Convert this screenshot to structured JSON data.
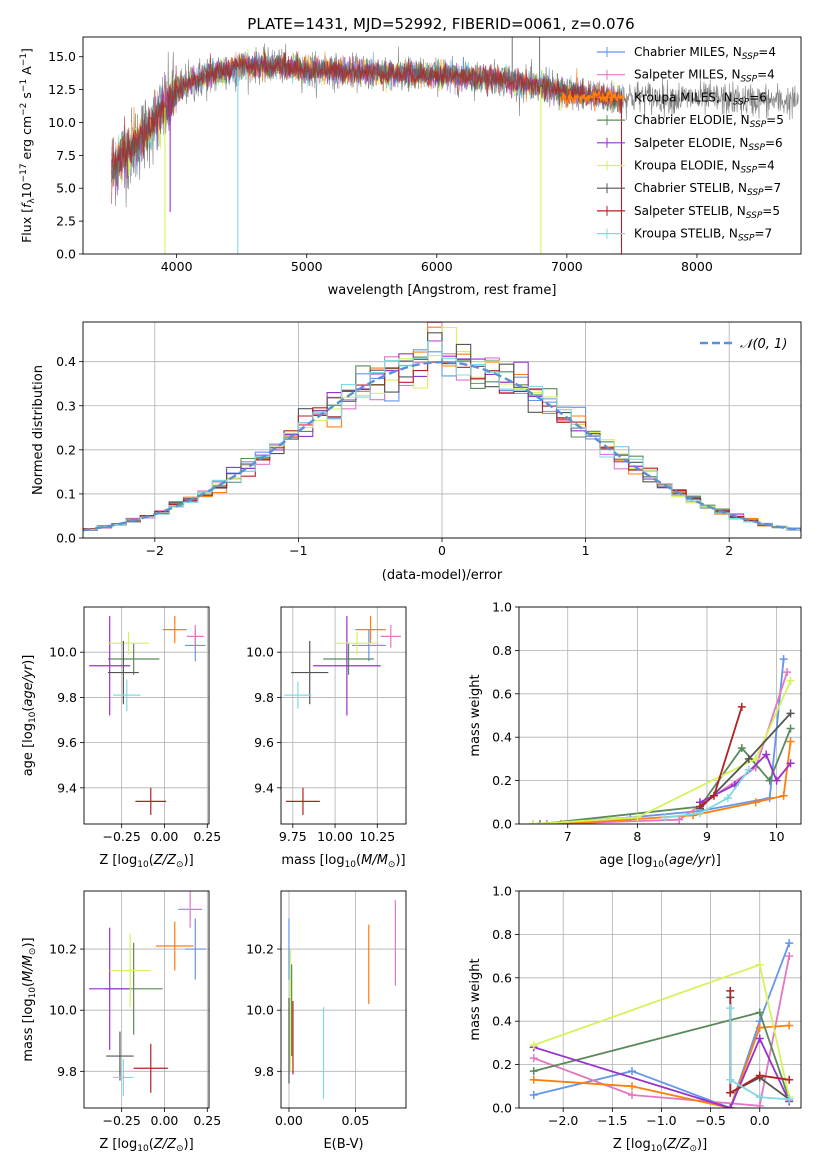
{
  "figure_title": "PLATE=1431, MJD=52992, FIBERID=0061, z=0.076",
  "colors": {
    "chabrier_miles": "#6495ed",
    "salpeter_miles": "#e377c2",
    "kroupa_miles": "#ff7f0e",
    "chabrier_elodie": "#5a8a5a",
    "salpeter_elodie": "#9932cc",
    "kroupa_elodie": "#d4f35a",
    "chabrier_stelib": "#555555",
    "salpeter_stelib": "#b22222",
    "kroupa_stelib": "#7fdbe0",
    "data_gray": "#808080",
    "gaussian": "#5b8fd6"
  },
  "chart_data": [
    {
      "id": "spectrum",
      "type": "line",
      "xlabel": "wavelength [Angstrom, rest frame]",
      "ylabel": "Flux [f$_\\lambda$10$^{-17}$ erg cm$^{-2}$ s$^{-1}$ A$^{-1}$]",
      "ylabel_parts": [
        "Flux [f",
        "λ",
        "10",
        "−17",
        " erg cm",
        "−2",
        " s",
        "−1",
        " A",
        "−1",
        "]"
      ],
      "xlim": [
        3280,
        8800
      ],
      "ylim": [
        0,
        16.5
      ],
      "xticks": [
        4000,
        5000,
        6000,
        7000,
        8000
      ],
      "yticks": [
        0.0,
        2.5,
        5.0,
        7.5,
        10.0,
        12.5,
        15.0
      ],
      "ytick_labels": [
        "0.0",
        "2.5",
        "5.0",
        "7.5",
        "10.0",
        "12.5",
        "15.0"
      ],
      "legend_position": "right",
      "legend": [
        {
          "main": "Chabrier MILES, N",
          "sub": "SSP",
          "tail": "=4",
          "color_key": "chabrier_miles"
        },
        {
          "main": "Salpeter MILES, N",
          "sub": "SSP",
          "tail": "=4",
          "color_key": "salpeter_miles"
        },
        {
          "main": "Kroupa MILES, N",
          "sub": "SSP",
          "tail": "=6",
          "color_key": "kroupa_miles"
        },
        {
          "main": "Chabrier ELODIE, N",
          "sub": "SSP",
          "tail": "=5",
          "color_key": "chabrier_elodie"
        },
        {
          "main": "Salpeter ELODIE, N",
          "sub": "SSP",
          "tail": "=6",
          "color_key": "salpeter_elodie"
        },
        {
          "main": "Kroupa ELODIE, N",
          "sub": "SSP",
          "tail": "=4",
          "color_key": "kroupa_elodie"
        },
        {
          "main": "Chabrier STELIB, N",
          "sub": "SSP",
          "tail": "=7",
          "color_key": "chabrier_stelib"
        },
        {
          "main": "Salpeter STELIB, N",
          "sub": "SSP",
          "tail": "=5",
          "color_key": "salpeter_stelib"
        },
        {
          "main": "Kroupa STELIB, N",
          "sub": "SSP",
          "tail": "=7",
          "color_key": "kroupa_stelib"
        }
      ],
      "continuum": {
        "x": [
          3500,
          3700,
          3900,
          4000,
          4100,
          4300,
          4500,
          4800,
          5000,
          5500,
          6000,
          6500,
          7000,
          7400
        ],
        "y": [
          6.5,
          8.5,
          11.0,
          12.5,
          13.0,
          13.8,
          14.3,
          14.3,
          14.0,
          13.8,
          13.6,
          13.3,
          12.3,
          11.8
        ]
      },
      "data_extends_to": 8780,
      "spikes": [
        {
          "x": 3910,
          "y": 0.0,
          "color_key": "kroupa_elodie"
        },
        {
          "x": 4470,
          "y": 0.0,
          "color_key": "kroupa_stelib"
        },
        {
          "x": 6800,
          "y": 0.0,
          "color_key": "kroupa_elodie"
        },
        {
          "x": 7420,
          "y": 0.0,
          "color_key": "salpeter_stelib"
        },
        {
          "x": 3950,
          "y": 3.2,
          "color_key": "salpeter_elodie"
        },
        {
          "x": 6580,
          "y": 16.5,
          "color_key": "data_gray"
        },
        {
          "x": 6790,
          "y": 16.5,
          "color_key": "data_gray"
        }
      ]
    },
    {
      "id": "residuals",
      "type": "histogram",
      "xlabel": "(data-model)/error",
      "ylabel": "Normed distribution",
      "xlim": [
        -2.5,
        2.5
      ],
      "ylim": [
        0,
        0.49
      ],
      "xticks": [
        -2,
        -1,
        0,
        1,
        2
      ],
      "xtick_labels": [
        "−2",
        "−1",
        "0",
        "1",
        "2"
      ],
      "yticks": [
        0.0,
        0.1,
        0.2,
        0.3,
        0.4
      ],
      "ytick_labels": [
        "0.0",
        "0.1",
        "0.2",
        "0.3",
        "0.4"
      ],
      "legend": "𝒩(0, 1)",
      "legend_position": "top-right",
      "bin_width": 0.1,
      "grid": true
    },
    {
      "id": "age_vs_Z",
      "type": "errorbar",
      "xlabel_main": "Z [log",
      "xlabel_sub": "10",
      "xlabel_tail": "(Z/Z",
      "xlabel_end": ")]",
      "ylabel_main": "age  [log",
      "ylabel_sub": "10",
      "ylabel_tail": "(age/yr)]",
      "xlim": [
        -0.47,
        0.26
      ],
      "ylim": [
        9.24,
        10.2
      ],
      "xticks": [
        -0.25,
        0.0,
        0.25
      ],
      "xtick_labels": [
        "−0.25",
        "0.00",
        "0.25"
      ],
      "yticks": [
        9.4,
        9.6,
        9.8,
        10.0
      ],
      "ytick_labels": [
        "9.4",
        "9.6",
        "9.8",
        "10.0"
      ],
      "points": [
        {
          "color_key": "chabrier_miles",
          "x": 0.18,
          "xerr": 0.06,
          "y": 10.03,
          "yerr": 0.07
        },
        {
          "color_key": "salpeter_miles",
          "x": 0.18,
          "xerr": 0.05,
          "y": 10.07,
          "yerr": 0.05
        },
        {
          "color_key": "kroupa_miles",
          "x": 0.06,
          "xerr": 0.07,
          "y": 10.1,
          "yerr": 0.06
        },
        {
          "color_key": "chabrier_elodie",
          "x": -0.18,
          "xerr": 0.15,
          "y": 9.97,
          "yerr": 0.07
        },
        {
          "color_key": "salpeter_elodie",
          "x": -0.32,
          "xerr": 0.12,
          "y": 9.94,
          "yerr": 0.22
        },
        {
          "color_key": "kroupa_elodie",
          "x": -0.21,
          "xerr": 0.12,
          "y": 10.04,
          "yerr": 0.05
        },
        {
          "color_key": "chabrier_stelib",
          "x": -0.24,
          "xerr": 0.09,
          "y": 9.91,
          "yerr": 0.14
        },
        {
          "color_key": "salpeter_stelib",
          "x": -0.08,
          "xerr": 0.09,
          "y": 9.34,
          "yerr": 0.06
        },
        {
          "color_key": "kroupa_stelib",
          "x": -0.22,
          "xerr": 0.08,
          "y": 9.81,
          "yerr": 0.07
        }
      ]
    },
    {
      "id": "age_vs_mass",
      "type": "errorbar",
      "xlabel_main": "mass [log",
      "xlabel_sub": "10",
      "xlabel_tail": "(M/M",
      "xlabel_end": ")]",
      "xlim": [
        9.68,
        10.42
      ],
      "ylim": [
        9.24,
        10.2
      ],
      "xticks": [
        9.75,
        10.0,
        10.25
      ],
      "xtick_labels": [
        "9.75",
        "10.00",
        "10.25"
      ],
      "yticks": [
        9.4,
        9.6,
        9.8,
        10.0
      ],
      "ytick_labels": [
        "9.4",
        "9.6",
        "9.8",
        "10.0"
      ],
      "points": [
        {
          "color_key": "chabrier_miles",
          "x": 10.2,
          "xerr": 0.1,
          "y": 10.03,
          "yerr": 0.07
        },
        {
          "color_key": "salpeter_miles",
          "x": 10.33,
          "xerr": 0.06,
          "y": 10.07,
          "yerr": 0.05
        },
        {
          "color_key": "kroupa_miles",
          "x": 10.21,
          "xerr": 0.09,
          "y": 10.1,
          "yerr": 0.06
        },
        {
          "color_key": "chabrier_elodie",
          "x": 10.08,
          "xerr": 0.15,
          "y": 9.97,
          "yerr": 0.07
        },
        {
          "color_key": "salpeter_elodie",
          "x": 10.07,
          "xerr": 0.2,
          "y": 9.94,
          "yerr": 0.22
        },
        {
          "color_key": "kroupa_elodie",
          "x": 10.13,
          "xerr": 0.13,
          "y": 10.04,
          "yerr": 0.05
        },
        {
          "color_key": "chabrier_stelib",
          "x": 9.85,
          "xerr": 0.11,
          "y": 9.91,
          "yerr": 0.14
        },
        {
          "color_key": "salpeter_stelib",
          "x": 9.81,
          "xerr": 0.1,
          "y": 9.34,
          "yerr": 0.06
        },
        {
          "color_key": "kroupa_stelib",
          "x": 9.78,
          "xerr": 0.08,
          "y": 9.81,
          "yerr": 0.06
        }
      ]
    },
    {
      "id": "mass_weight_vs_age",
      "type": "line",
      "xlabel_main": "age  [log",
      "xlabel_sub": "10",
      "xlabel_tail": "(age/yr)]",
      "ylabel": "mass weight",
      "xlim": [
        6.3,
        10.35
      ],
      "ylim": [
        0,
        1.0
      ],
      "xticks": [
        7,
        8,
        9,
        10
      ],
      "xtick_labels": [
        "7",
        "8",
        "9",
        "10"
      ],
      "yticks": [
        0.0,
        0.2,
        0.4,
        0.6,
        0.8,
        1.0
      ],
      "ytick_labels": [
        "0.0",
        "0.2",
        "0.4",
        "0.6",
        "0.8",
        "1.0"
      ],
      "series": [
        {
          "color_key": "chabrier_miles",
          "x": [
            6.5,
            7.9,
            8.9,
            9.9,
            10.1
          ],
          "y": [
            0.0,
            0.03,
            0.06,
            0.12,
            0.76
          ]
        },
        {
          "color_key": "salpeter_miles",
          "x": [
            6.7,
            8.6,
            9.7,
            10.15
          ],
          "y": [
            0.0,
            0.02,
            0.26,
            0.7
          ]
        },
        {
          "color_key": "kroupa_miles",
          "x": [
            6.9,
            8.8,
            9.7,
            10.1,
            10.2
          ],
          "y": [
            0.0,
            0.04,
            0.1,
            0.13,
            0.38
          ]
        },
        {
          "color_key": "chabrier_elodie",
          "x": [
            6.6,
            8.9,
            9.5,
            9.9,
            10.2
          ],
          "y": [
            0.0,
            0.08,
            0.35,
            0.2,
            0.44
          ]
        },
        {
          "color_key": "salpeter_elodie",
          "x": [
            8.9,
            9.4,
            9.85,
            10.0,
            10.2
          ],
          "y": [
            0.1,
            0.18,
            0.32,
            0.2,
            0.28
          ]
        },
        {
          "color_key": "kroupa_elodie",
          "x": [
            6.5,
            8.0,
            9.7,
            10.2
          ],
          "y": [
            0.0,
            0.03,
            0.3,
            0.66
          ]
        },
        {
          "color_key": "chabrier_stelib",
          "x": [
            8.9,
            9.6,
            10.2
          ],
          "y": [
            0.07,
            0.3,
            0.51
          ]
        },
        {
          "color_key": "salpeter_stelib",
          "x": [
            8.9,
            9.1,
            9.5
          ],
          "y": [
            0.08,
            0.13,
            0.54
          ]
        },
        {
          "color_key": "kroupa_stelib",
          "x": [
            8.4,
            8.9,
            9.3,
            9.6
          ],
          "y": [
            0.03,
            0.05,
            0.12,
            0.25
          ]
        }
      ]
    },
    {
      "id": "mass_vs_Z",
      "type": "errorbar",
      "xlabel_main": "Z [log",
      "xlabel_sub": "10",
      "xlabel_tail": "(Z/Z",
      "xlabel_end": ")]",
      "ylabel_main": "mass [log",
      "ylabel_sub": "10",
      "ylabel_tail": "(M/M",
      "ylabel_end": ")]",
      "xlim": [
        -0.47,
        0.26
      ],
      "ylim": [
        9.68,
        10.39
      ],
      "xticks": [
        -0.25,
        0.0,
        0.25
      ],
      "xtick_labels": [
        "−0.25",
        "0.00",
        "0.25"
      ],
      "yticks": [
        9.8,
        10.0,
        10.2
      ],
      "ytick_labels": [
        "9.8",
        "10.0",
        "10.2"
      ],
      "points": [
        {
          "color_key": "chabrier_miles",
          "x": 0.18,
          "xerr": 0.06,
          "y": 10.2,
          "yerr": 0.1
        },
        {
          "color_key": "salpeter_miles",
          "x": 0.15,
          "xerr": 0.07,
          "y": 10.33,
          "yerr": 0.06
        },
        {
          "color_key": "kroupa_miles",
          "x": 0.06,
          "xerr": 0.11,
          "y": 10.21,
          "yerr": 0.08
        },
        {
          "color_key": "chabrier_elodie",
          "x": -0.18,
          "xerr": 0.17,
          "y": 10.07,
          "yerr": 0.15
        },
        {
          "color_key": "salpeter_elodie",
          "x": -0.32,
          "xerr": 0.12,
          "y": 10.07,
          "yerr": 0.2
        },
        {
          "color_key": "kroupa_elodie",
          "x": -0.2,
          "xerr": 0.12,
          "y": 10.13,
          "yerr": 0.12
        },
        {
          "color_key": "chabrier_stelib",
          "x": -0.26,
          "xerr": 0.08,
          "y": 9.85,
          "yerr": 0.08
        },
        {
          "color_key": "salpeter_stelib",
          "x": -0.08,
          "xerr": 0.1,
          "y": 9.81,
          "yerr": 0.08
        },
        {
          "color_key": "kroupa_stelib",
          "x": -0.24,
          "xerr": 0.06,
          "y": 9.78,
          "yerr": 0.06
        }
      ]
    },
    {
      "id": "mass_vs_ebv",
      "type": "errorbar",
      "xlabel": "E(B-V)",
      "xlim": [
        -0.006,
        0.088
      ],
      "ylim": [
        9.68,
        10.39
      ],
      "xticks": [
        0.0,
        0.05
      ],
      "xtick_labels": [
        "0.00",
        "0.05"
      ],
      "yticks": [
        9.8,
        10.0,
        10.2
      ],
      "ytick_labels": [
        "9.8",
        "10.0",
        "10.2"
      ],
      "points": [
        {
          "color_key": "chabrier_miles",
          "x": 0.0,
          "xerr": 0,
          "y": 10.2,
          "yerr": 0.1
        },
        {
          "color_key": "salpeter_miles",
          "x": 0.08,
          "xerr": 0,
          "y": 10.22,
          "yerr": 0.14
        },
        {
          "color_key": "kroupa_miles",
          "x": 0.06,
          "xerr": 0,
          "y": 10.15,
          "yerr": 0.13
        },
        {
          "color_key": "chabrier_elodie",
          "x": 0.002,
          "xerr": 0,
          "y": 10.0,
          "yerr": 0.15
        },
        {
          "color_key": "kroupa_elodie",
          "x": 0.001,
          "xerr": 0,
          "y": 10.0,
          "yerr": 0.2
        },
        {
          "color_key": "chabrier_stelib",
          "x": 0.0,
          "xerr": 0,
          "y": 9.9,
          "yerr": 0.14
        },
        {
          "color_key": "salpeter_stelib",
          "x": 0.003,
          "xerr": 0,
          "y": 9.91,
          "yerr": 0.12
        },
        {
          "color_key": "kroupa_stelib",
          "x": 0.026,
          "xerr": 0,
          "y": 9.86,
          "yerr": 0.15
        }
      ]
    },
    {
      "id": "mass_weight_vs_Z",
      "type": "line",
      "xlabel_main": "Z [log",
      "xlabel_sub": "10",
      "xlabel_tail": "(Z/Z",
      "xlabel_end": ")]",
      "ylabel": "mass weight",
      "xlim": [
        -2.45,
        0.42
      ],
      "ylim": [
        0,
        1.0
      ],
      "xticks": [
        -2.0,
        -1.5,
        -1.0,
        -0.5,
        0.0
      ],
      "xtick_labels": [
        "−2.0",
        "−1.5",
        "−1.0",
        "−0.5",
        "0.0"
      ],
      "yticks": [
        0.0,
        0.2,
        0.4,
        0.6,
        0.8,
        1.0
      ],
      "ytick_labels": [
        "0.0",
        "0.2",
        "0.4",
        "0.6",
        "0.8",
        "1.0"
      ],
      "series": [
        {
          "color_key": "chabrier_miles",
          "x": [
            -2.3,
            -1.3,
            -0.3,
            0.0,
            0.3
          ],
          "y": [
            0.06,
            0.17,
            0.0,
            0.4,
            0.76
          ]
        },
        {
          "color_key": "salpeter_miles",
          "x": [
            -2.3,
            -1.3,
            0.0,
            0.3
          ],
          "y": [
            0.23,
            0.06,
            0.01,
            0.7
          ]
        },
        {
          "color_key": "kroupa_miles",
          "x": [
            -2.3,
            -1.3,
            -0.3,
            0.0,
            0.3
          ],
          "y": [
            0.13,
            0.1,
            0.0,
            0.37,
            0.38
          ]
        },
        {
          "color_key": "chabrier_elodie",
          "x": [
            -2.3,
            0.0,
            0.3
          ],
          "y": [
            0.17,
            0.44,
            0.04
          ]
        },
        {
          "color_key": "salpeter_elodie",
          "x": [
            -2.3,
            -0.3,
            0.0,
            0.3
          ],
          "y": [
            0.28,
            0.0,
            0.32,
            0.03
          ]
        },
        {
          "color_key": "kroupa_elodie",
          "x": [
            -2.3,
            0.0,
            0.3
          ],
          "y": [
            0.29,
            0.66,
            0.05
          ]
        },
        {
          "color_key": "chabrier_stelib",
          "x": [
            -0.3,
            -0.3,
            0.0,
            0.3
          ],
          "y": [
            0.51,
            0.07,
            0.14,
            0.04
          ]
        },
        {
          "color_key": "salpeter_stelib",
          "x": [
            -0.3,
            -0.3,
            0.0,
            0.3
          ],
          "y": [
            0.54,
            0.07,
            0.15,
            0.13
          ]
        },
        {
          "color_key": "kroupa_stelib",
          "x": [
            -0.3,
            -0.3,
            0.0,
            0.3
          ],
          "y": [
            0.46,
            0.13,
            0.05,
            0.04
          ]
        }
      ]
    }
  ]
}
